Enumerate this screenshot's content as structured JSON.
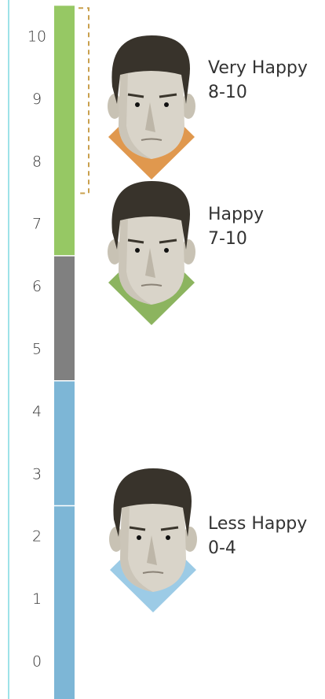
{
  "scale": {
    "ticks": [
      0,
      1,
      2,
      3,
      4,
      5,
      6,
      7,
      8,
      9,
      10
    ],
    "range": [
      -0.6,
      10.5
    ]
  },
  "segments": [
    {
      "from": -0.6,
      "to": 2.5,
      "color": "#7db6d6"
    },
    {
      "from": 2.5,
      "to": 4.5,
      "color": "#7db6d6"
    },
    {
      "from": 4.5,
      "to": 6.5,
      "color": "#808080"
    },
    {
      "from": 6.5,
      "to": 10.5,
      "color": "#96c864"
    }
  ],
  "bracket": {
    "from": 7.5,
    "to": 10.5,
    "color": "#c9a04e"
  },
  "groups": [
    {
      "label": "Very Happy",
      "range": "8-10",
      "color": "#e0984e"
    },
    {
      "label": "Happy",
      "range": "7-10",
      "color": "#8cb45f"
    },
    {
      "label": "Less Happy",
      "range": "0-4",
      "color": "#9ccbe6"
    }
  ]
}
